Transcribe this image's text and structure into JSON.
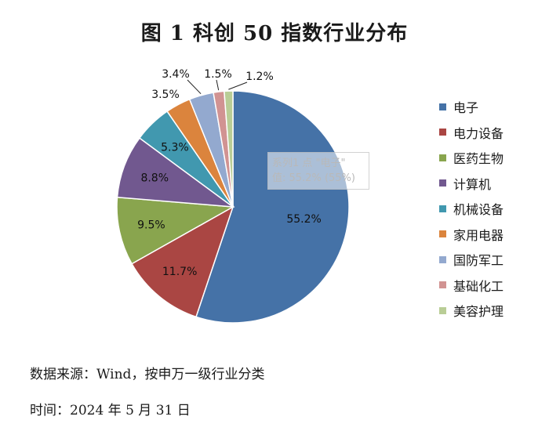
{
  "title": "图 1  科创 50 指数行业分布",
  "chart_data": {
    "type": "pie",
    "title": "图 1  科创 50 指数行业分布",
    "slices": [
      {
        "name": "电子",
        "value": 55.2,
        "label": "55.2%",
        "color": "#4572A7"
      },
      {
        "name": "电力设备",
        "value": 11.7,
        "label": "11.7%",
        "color": "#AA4643"
      },
      {
        "name": "医药生物",
        "value": 9.5,
        "label": "9.5%",
        "color": "#89A54E"
      },
      {
        "name": "计算机",
        "value": 8.8,
        "label": "8.8%",
        "color": "#71588F"
      },
      {
        "name": "机械设备",
        "value": 5.3,
        "label": "5.3%",
        "color": "#4198AF"
      },
      {
        "name": "家用电器",
        "value": 3.5,
        "label": "3.5%",
        "color": "#DB843D"
      },
      {
        "name": "国防军工",
        "value": 3.4,
        "label": "3.4%",
        "color": "#93A9CF"
      },
      {
        "name": "基础化工",
        "value": 1.5,
        "label": "1.5%",
        "color": "#D19392"
      },
      {
        "name": "美容护理",
        "value": 1.2,
        "label": "1.2%",
        "color": "#B9CD96"
      }
    ],
    "legend_position": "right"
  },
  "tooltip": {
    "line1": "系列1 点 \"电子\"",
    "line2": "值: 55.2% (55%)"
  },
  "footer": {
    "source": "数据来源：Wind，按申万一级行业分类",
    "time": "时间：2024 年 5 月 31 日"
  }
}
